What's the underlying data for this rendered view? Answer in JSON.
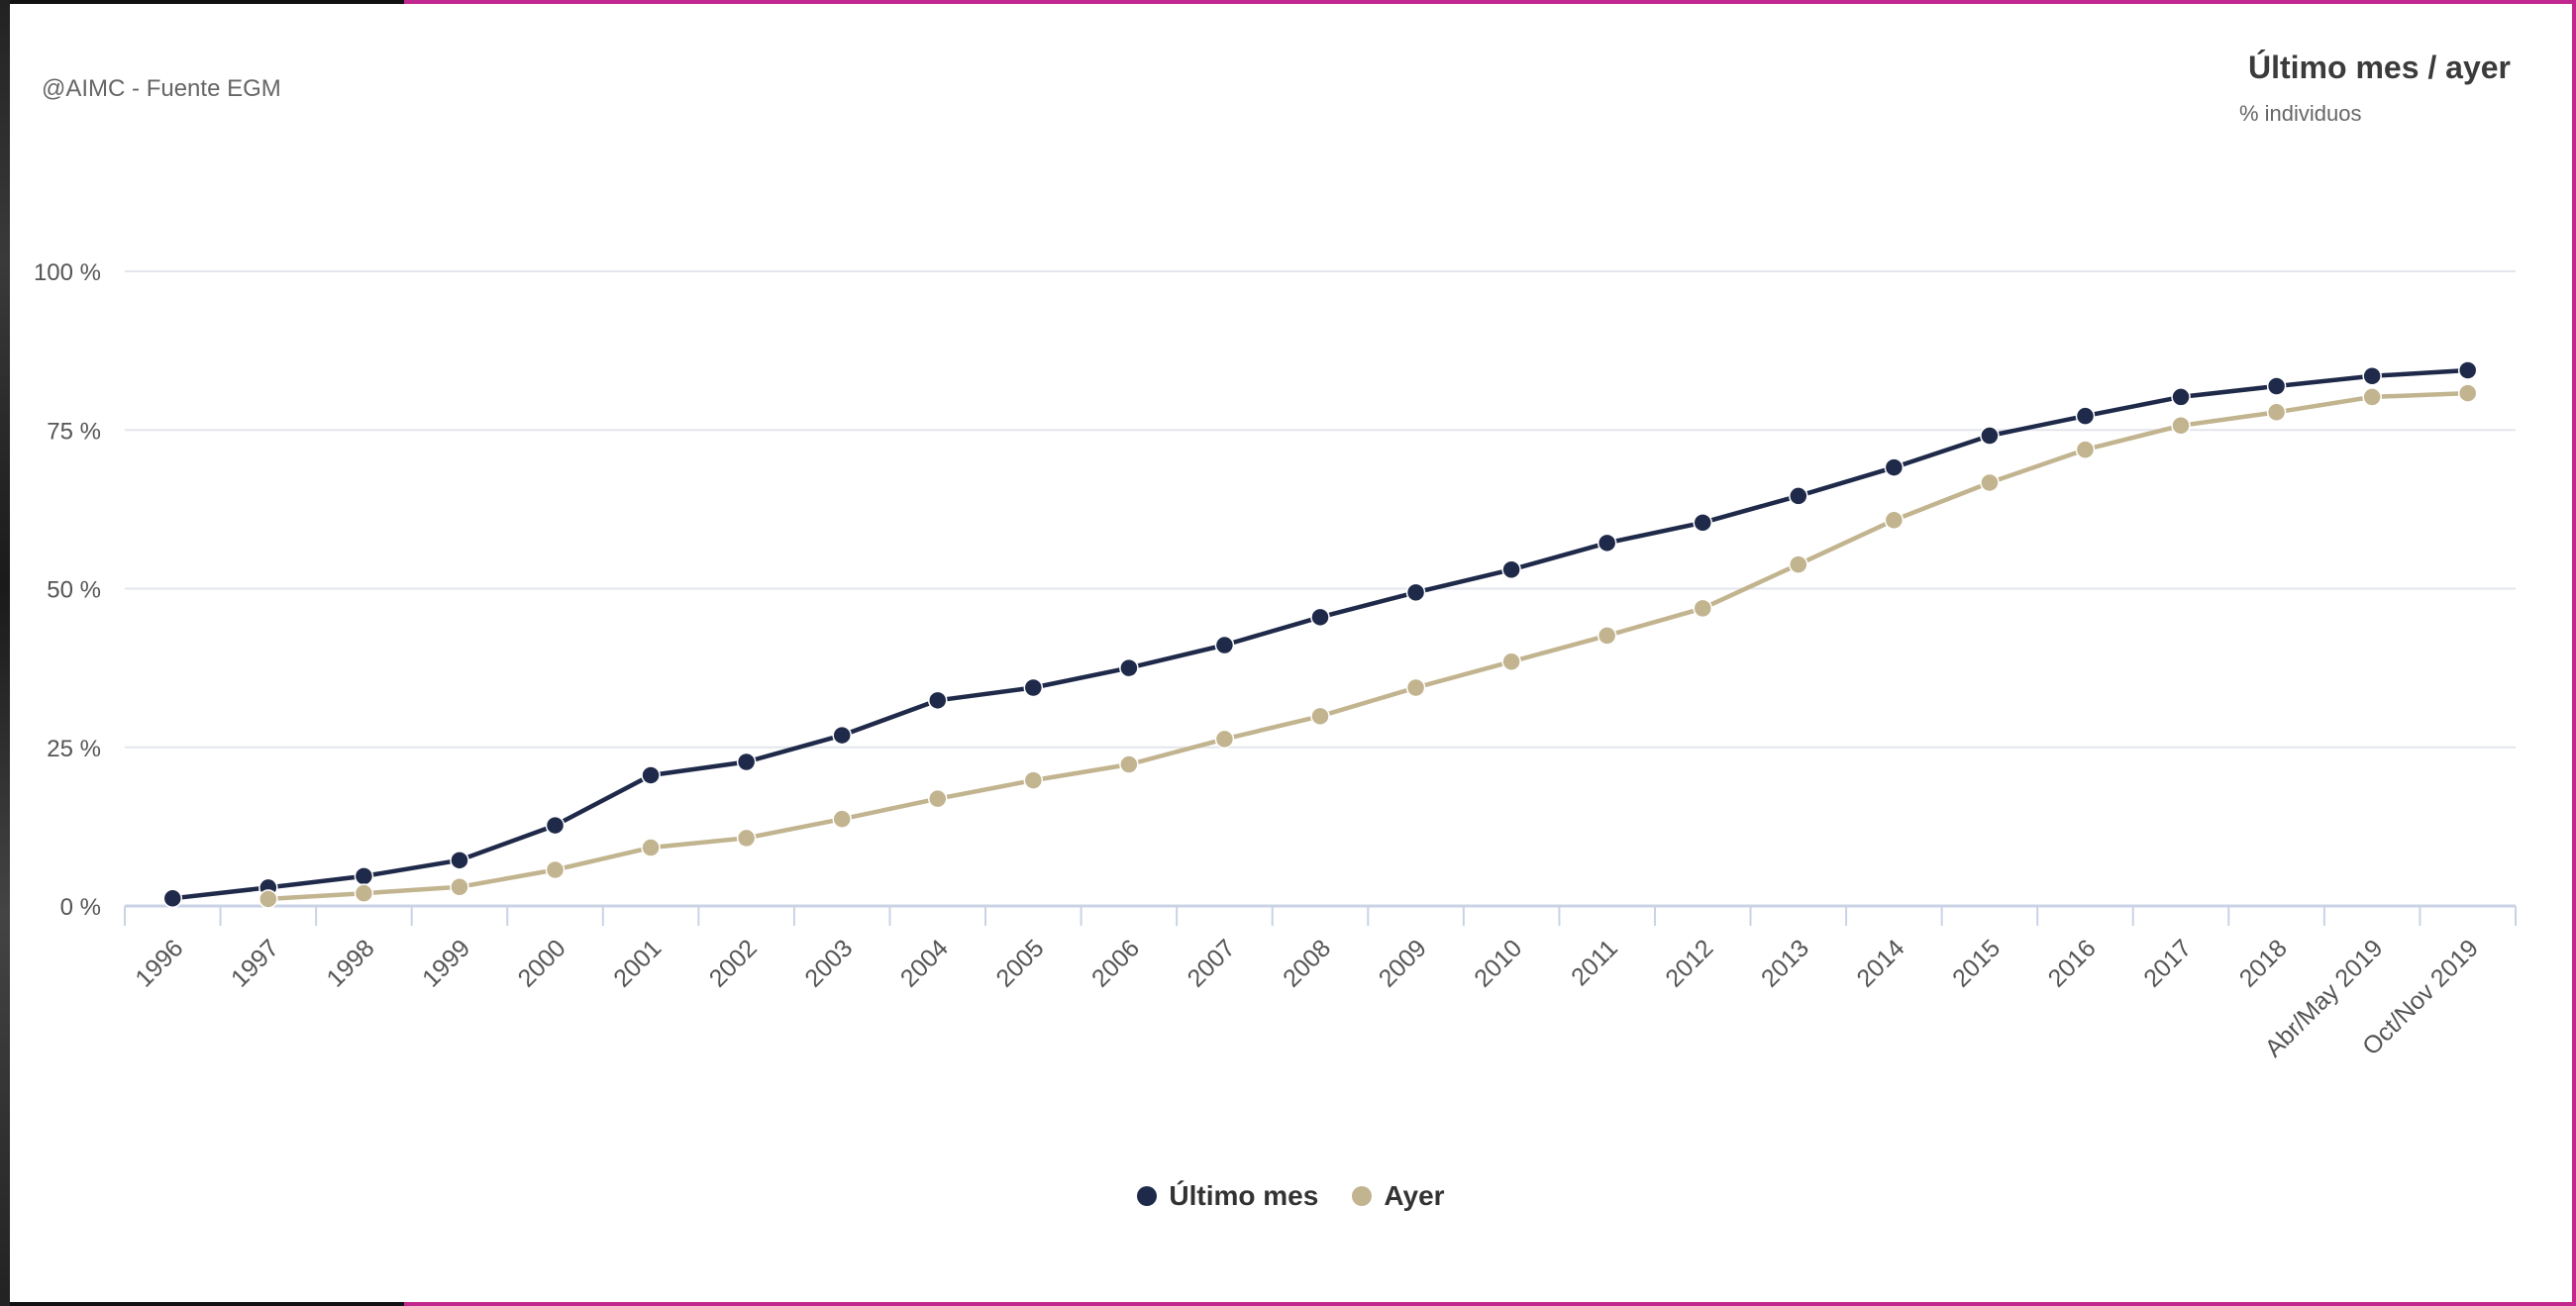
{
  "credit": "@AIMC - Fuente EGM",
  "colors": {
    "ultimo_mes": "#1f2a4a",
    "ayer": "#c2b48f",
    "grid": "#e3e6ec",
    "axis": "#c9d3e6",
    "tick_text": "#555555"
  },
  "chart_data": {
    "type": "line",
    "title": "Último mes / ayer",
    "subtitle": "% individuos",
    "categories": [
      "1996",
      "1997",
      "1998",
      "1999",
      "2000",
      "2001",
      "2002",
      "2003",
      "2004",
      "2005",
      "2006",
      "2007",
      "2008",
      "2009",
      "2010",
      "2011",
      "2012",
      "2013",
      "2014",
      "2015",
      "2016",
      "2017",
      "2018",
      "Abr/May 2019",
      "Oct/Nov 2019"
    ],
    "y_ticks": [
      "0 %",
      "25 %",
      "50 %",
      "75 %",
      "100 %"
    ],
    "ylim": [
      0,
      100
    ],
    "grid": true,
    "legend_position": "bottom-center",
    "series": [
      {
        "name": "Último mes",
        "values": [
          1.2,
          2.9,
          4.7,
          7.2,
          12.7,
          20.6,
          22.7,
          26.9,
          32.4,
          34.4,
          37.5,
          41.1,
          45.5,
          49.4,
          53.0,
          57.2,
          60.4,
          64.6,
          69.1,
          74.1,
          77.2,
          80.2,
          81.9,
          83.5,
          84.4
        ]
      },
      {
        "name": "Ayer",
        "values": [
          null,
          1.1,
          2.0,
          3.0,
          5.7,
          9.2,
          10.7,
          13.7,
          16.9,
          19.8,
          22.3,
          26.3,
          29.9,
          34.4,
          38.5,
          42.6,
          46.9,
          53.8,
          60.8,
          66.7,
          71.9,
          75.7,
          77.8,
          80.2,
          80.8
        ]
      }
    ]
  }
}
